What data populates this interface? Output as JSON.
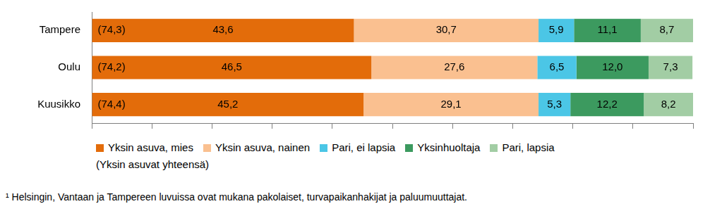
{
  "chart_data": {
    "type": "bar",
    "orientation": "horizontal",
    "stacked": true,
    "data_labels": true,
    "tick_labels": "y",
    "grid": false,
    "categories": [
      "Tampere",
      "Oulu",
      "Kuusikko"
    ],
    "series": [
      {
        "name": "Yksin asuva, mies",
        "color": "#E36C0A",
        "values": [
          43.6,
          46.5,
          45.2
        ],
        "value_labels": [
          "43,6",
          "46,5",
          "45,2"
        ]
      },
      {
        "name": "Yksin asuva, nainen",
        "color": "#FAC090",
        "values": [
          30.7,
          27.6,
          29.1
        ],
        "value_labels": [
          "30,7",
          "27,6",
          "29,1"
        ]
      },
      {
        "name": "Pari, ei lapsia",
        "color": "#4BC6E6",
        "values": [
          5.9,
          6.5,
          5.3
        ],
        "value_labels": [
          "5,9",
          "6,5",
          "5,3"
        ]
      },
      {
        "name": "Yksinhuoltaja",
        "color": "#3C9A5F",
        "values": [
          11.1,
          12.0,
          12.2
        ],
        "value_labels": [
          "11,1",
          "12,0",
          "12,2"
        ]
      },
      {
        "name": "Pari, lapsia",
        "color": "#A2CDA4",
        "values": [
          8.7,
          7.3,
          8.2
        ],
        "value_labels": [
          "8,7",
          "7,3",
          "8,2"
        ]
      }
    ],
    "subtotal": {
      "label": "(Yksin asuvat yhteensä)",
      "values": [
        74.3,
        74.2,
        74.4
      ],
      "value_labels": [
        "(74,3)",
        "(74,2)",
        "(74,4)"
      ]
    },
    "xlim": [
      0,
      100
    ],
    "xticks": [
      0,
      10,
      20,
      30,
      40,
      50,
      60,
      70,
      80,
      90,
      100
    ],
    "footnote": "¹ Helsingin, Vantaan ja Tampereen luvuissa ovat mukana pakolaiset, turvapaikanhakijat ja paluumuuttajat."
  }
}
